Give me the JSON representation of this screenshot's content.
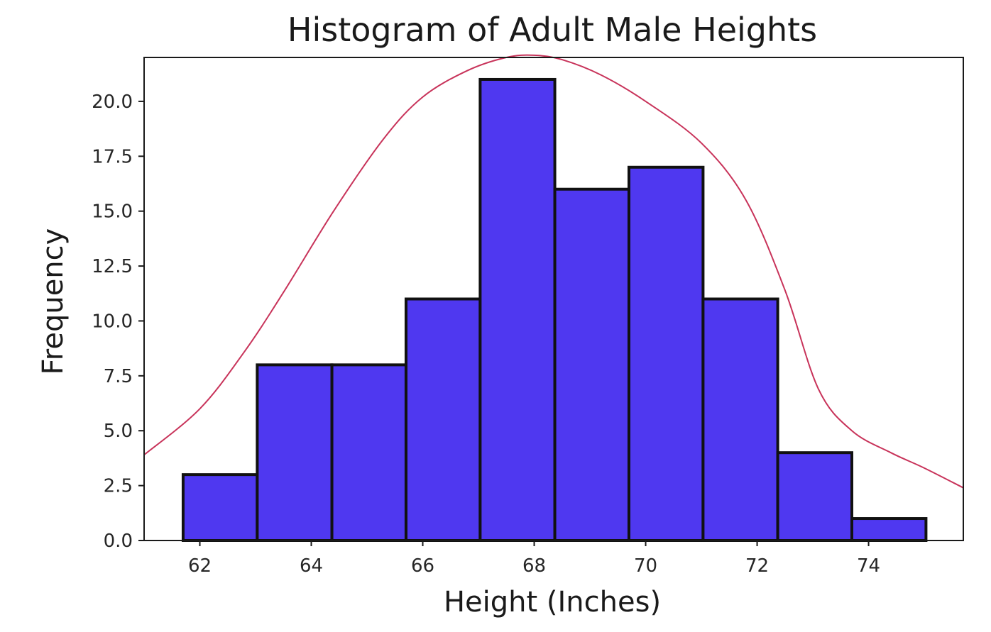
{
  "chart_data": {
    "type": "bar",
    "title": "Histogram of Adult Male Heights",
    "xlabel": "Height (Inches)",
    "ylabel": "Frequency",
    "xlim": [
      61.0,
      75.7
    ],
    "ylim": [
      0,
      22.0
    ],
    "grid": false,
    "x_ticks": [
      62,
      64,
      66,
      68,
      70,
      72,
      74
    ],
    "x_tick_labels": [
      "62",
      "64",
      "66",
      "68",
      "70",
      "72",
      "74"
    ],
    "y_ticks": [
      0.0,
      2.5,
      5.0,
      7.5,
      10.0,
      12.5,
      15.0,
      17.5,
      20.0
    ],
    "y_tick_labels": [
      "0.0",
      "2.5",
      "5.0",
      "7.5",
      "10.0",
      "12.5",
      "15.0",
      "17.5",
      "20.0"
    ],
    "bins": [
      {
        "start": 61.7,
        "end": 63.03,
        "count": 3
      },
      {
        "start": 63.03,
        "end": 64.37,
        "count": 8
      },
      {
        "start": 64.37,
        "end": 65.7,
        "count": 8
      },
      {
        "start": 65.7,
        "end": 67.03,
        "count": 11
      },
      {
        "start": 67.03,
        "end": 68.37,
        "count": 21
      },
      {
        "start": 68.37,
        "end": 69.7,
        "count": 16
      },
      {
        "start": 69.7,
        "end": 71.03,
        "count": 17
      },
      {
        "start": 71.03,
        "end": 72.37,
        "count": 11
      },
      {
        "start": 72.37,
        "end": 73.7,
        "count": 4
      },
      {
        "start": 73.7,
        "end": 75.03,
        "count": 1
      }
    ],
    "density_curve": {
      "name": "density estimate",
      "x": [
        61.0,
        62.0,
        62.8,
        63.5,
        64.4,
        65.3,
        66.0,
        66.8,
        67.5,
        68.0,
        68.5,
        69.2,
        70.0,
        71.0,
        71.8,
        72.5,
        73.1,
        73.7,
        74.4,
        75.0,
        75.7
      ],
      "y": [
        3.9,
        6.0,
        8.6,
        11.3,
        15.0,
        18.3,
        20.2,
        21.4,
        22.0,
        22.1,
        21.9,
        21.2,
        20.0,
        18.1,
        15.5,
        11.4,
        6.9,
        5.0,
        4.0,
        3.3,
        2.4
      ]
    }
  },
  "colors": {
    "bar_fill": "#4f38f0",
    "bar_edge": "#111111",
    "curve": "#c8335a",
    "axis": "#1a1a1a"
  }
}
